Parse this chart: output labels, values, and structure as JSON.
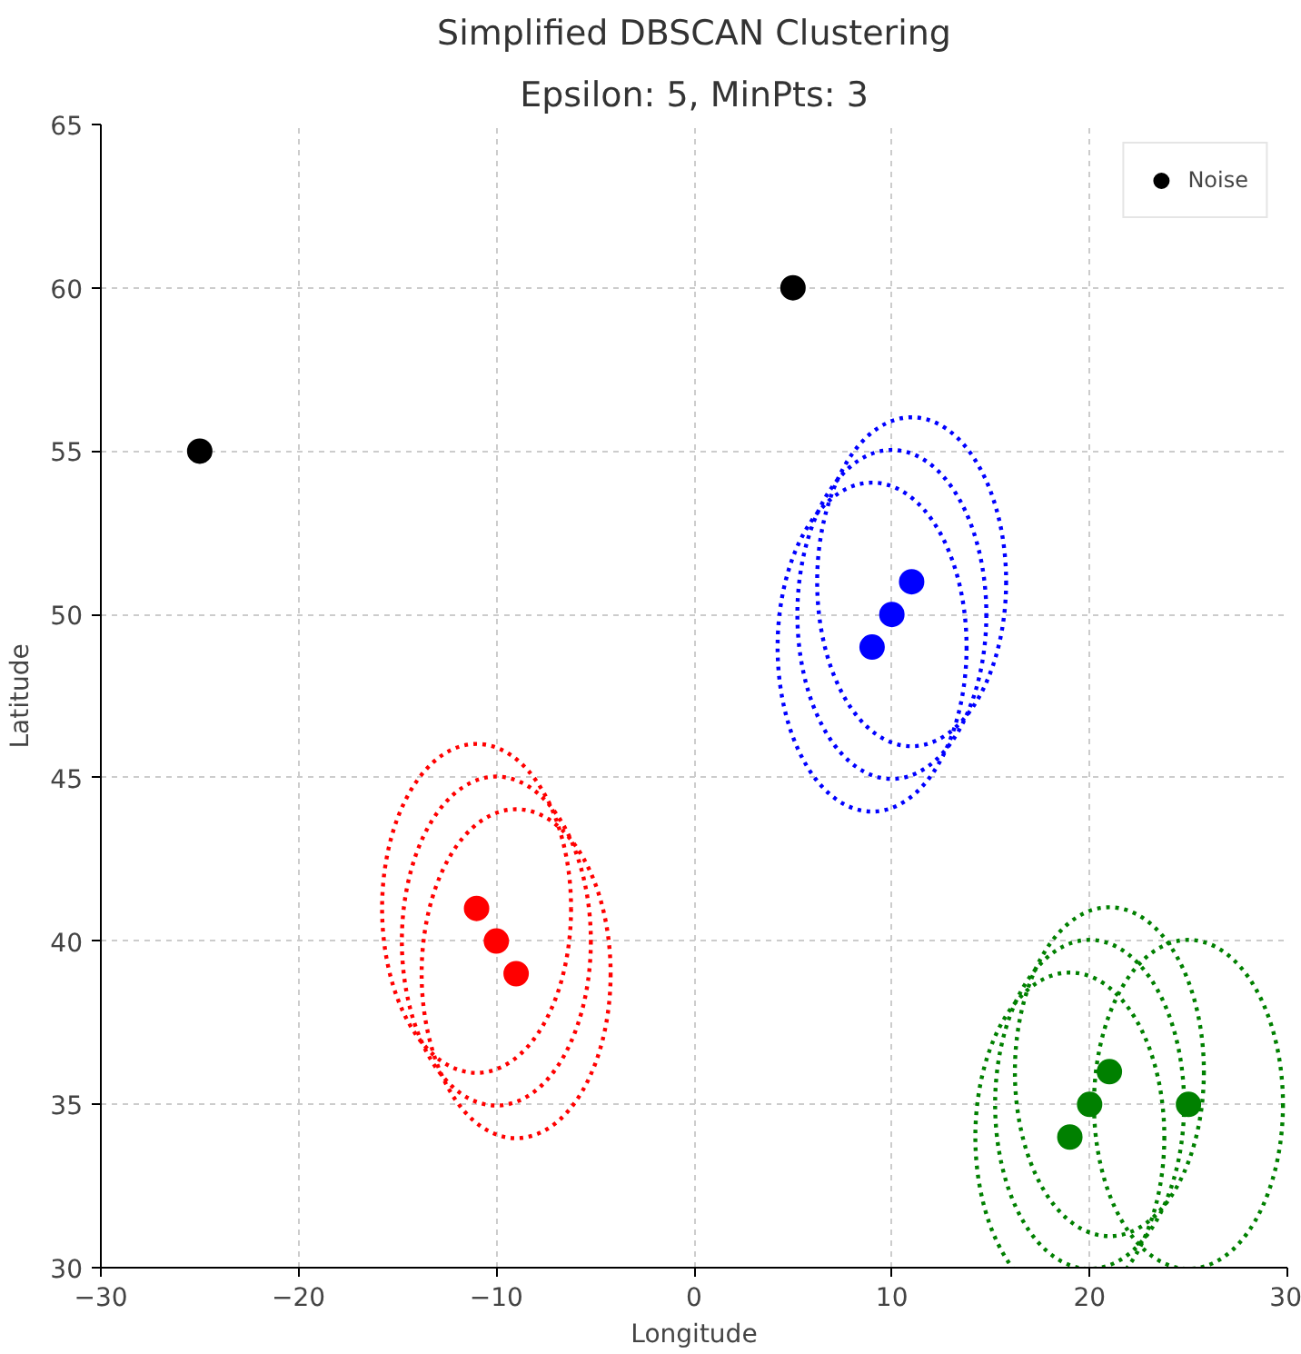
{
  "chart_data": {
    "type": "scatter",
    "title": "Simplified DBSCAN Clustering",
    "subtitle": "Epsilon: 5, MinPts: 3",
    "xlabel": "Longitude",
    "ylabel": "Latitude",
    "xlim": [
      -30,
      30
    ],
    "ylim": [
      30,
      65
    ],
    "xticks": [
      {
        "value": -30,
        "label": "−30"
      },
      {
        "value": -20,
        "label": "−20"
      },
      {
        "value": -10,
        "label": "−10"
      },
      0,
      10,
      20,
      30
    ],
    "yticks": [
      30,
      35,
      40,
      45,
      50,
      55,
      60,
      65
    ],
    "grid": true,
    "legend": "top right",
    "marker": "circle",
    "series": [
      {
        "color": "#ff0000",
        "x": [
          -11,
          -10,
          -9
        ],
        "values": [
          41,
          40,
          39
        ]
      },
      {
        "color": "#0000ff",
        "x": [
          9,
          10,
          11
        ],
        "values": [
          49,
          50,
          51
        ]
      },
      {
        "color": "#008000",
        "x": [
          19,
          20,
          21,
          25
        ],
        "values": [
          34,
          35,
          36,
          35
        ]
      },
      {
        "name": "Noise",
        "color": "#000000",
        "x": [
          -25,
          5
        ],
        "values": [
          55,
          60
        ]
      }
    ]
  }
}
